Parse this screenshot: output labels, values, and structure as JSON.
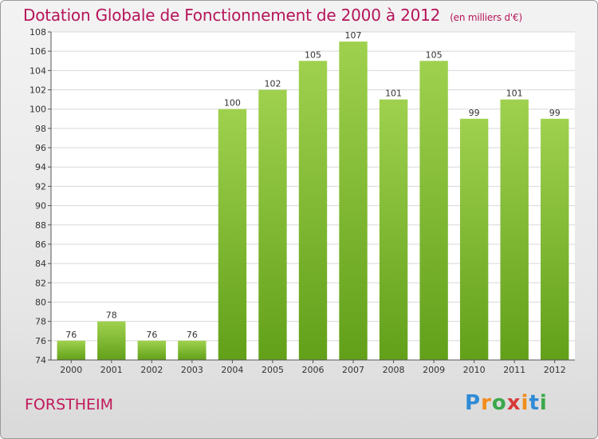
{
  "title": "Dotation Globale de Fonctionnement de 2000 à 2012",
  "unit": "(en milliers d'€)",
  "commune": "FORSTHEIM",
  "logo": {
    "letters": [
      "P",
      "r",
      "o",
      "x",
      "i",
      "t",
      "i"
    ],
    "colors": [
      "#2f8bd6",
      "#f28c1a",
      "#3aa84a",
      "#d63a3a",
      "#f28c1a",
      "#2f8bd6",
      "#3aa84a"
    ]
  },
  "colors": {
    "bar_top": "#9fd14e",
    "bar_bottom": "#62a01a",
    "title": "#b5155a",
    "plot_bg": "#ffffff",
    "grid": "#d8d8d8"
  },
  "chart_data": {
    "type": "bar",
    "title": "Dotation Globale de Fonctionnement de 2000 à 2012",
    "subtitle": "(en milliers d'€)",
    "categories": [
      "2000",
      "2001",
      "2002",
      "2003",
      "2004",
      "2005",
      "2006",
      "2007",
      "2008",
      "2009",
      "2010",
      "2011",
      "2012"
    ],
    "values": [
      76,
      78,
      76,
      76,
      100,
      102,
      105,
      107,
      101,
      105,
      99,
      101,
      99
    ],
    "ylim": [
      74,
      108
    ],
    "yticks": [
      74,
      76,
      78,
      80,
      82,
      84,
      86,
      88,
      90,
      92,
      94,
      96,
      98,
      100,
      102,
      104,
      106,
      108
    ],
    "grid": true,
    "legend": "none"
  }
}
